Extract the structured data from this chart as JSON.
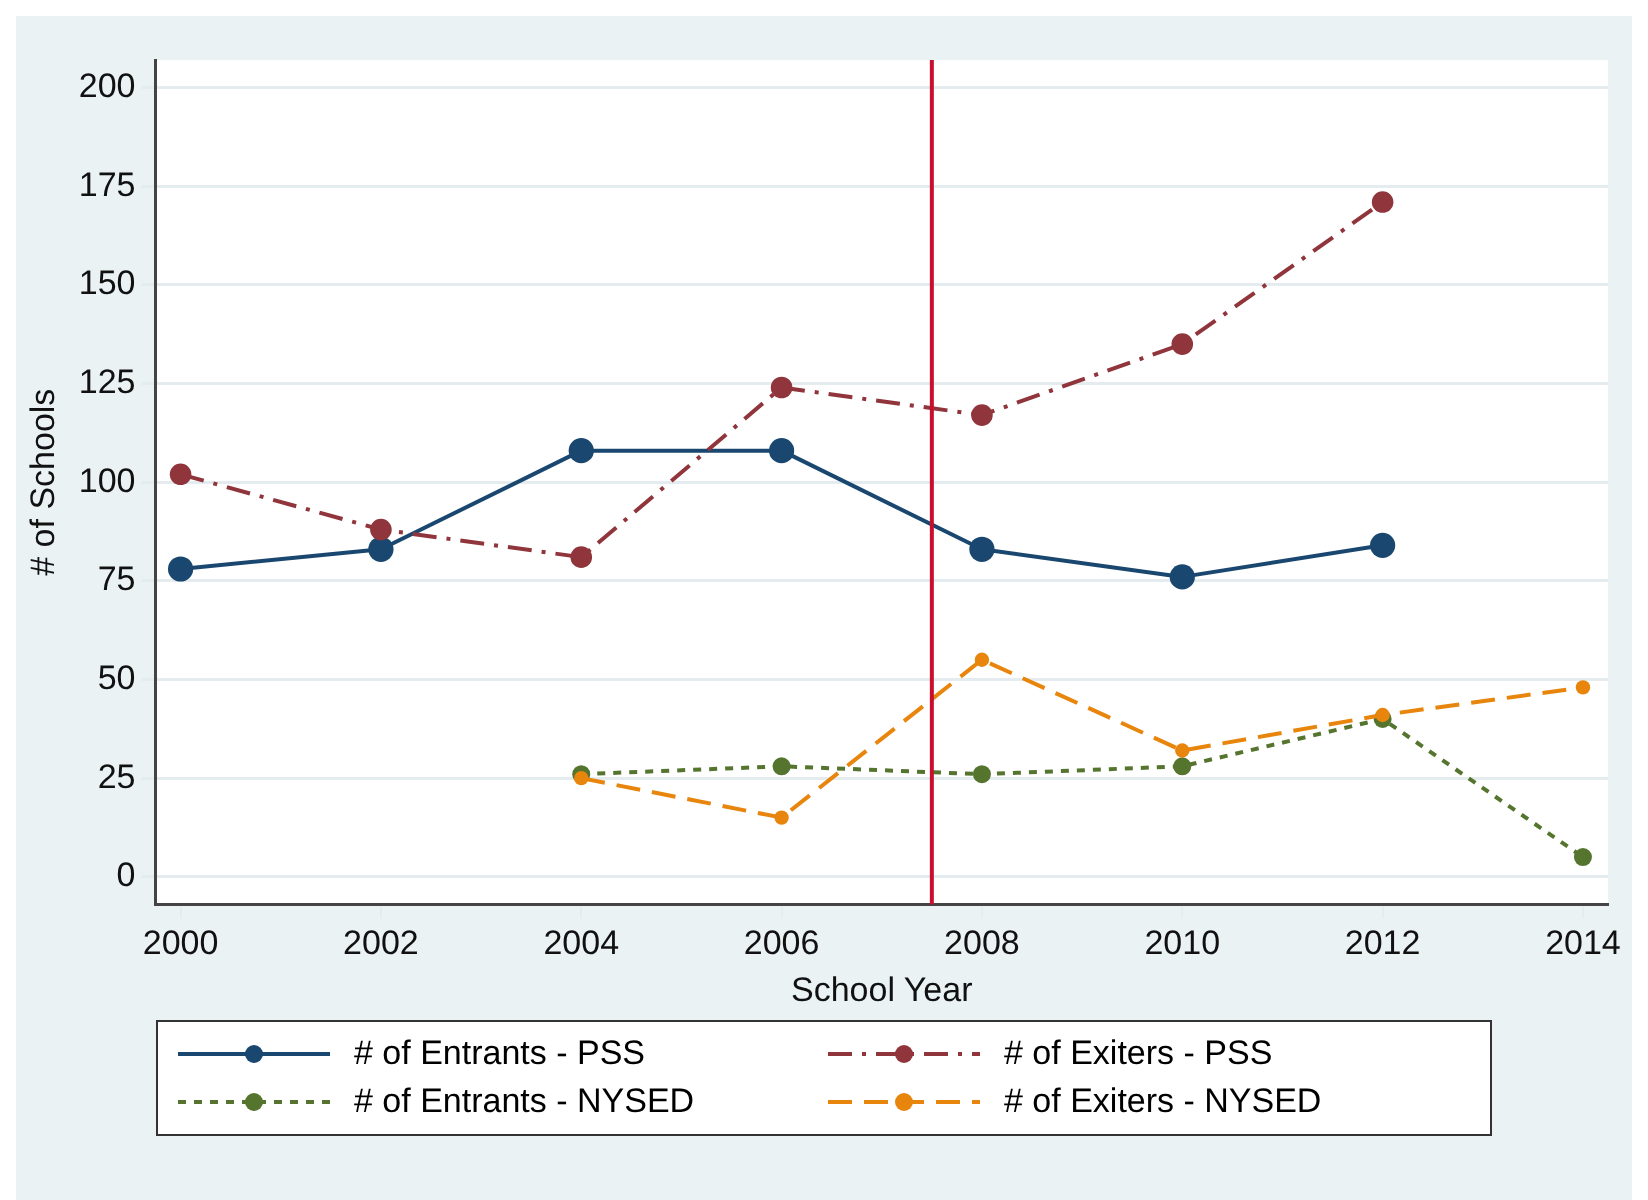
{
  "chart_data": {
    "type": "line",
    "xlabel": "School Year",
    "ylabel": "# of Schools",
    "x": [
      2000,
      2002,
      2004,
      2006,
      2008,
      2010,
      2012,
      2014
    ],
    "xlim": [
      1999.75,
      2014.25
    ],
    "xticks": [
      2000,
      2002,
      2004,
      2006,
      2008,
      2010,
      2012,
      2014
    ],
    "ylim": [
      -7,
      207
    ],
    "yticks": [
      0,
      25,
      50,
      75,
      100,
      125,
      150,
      175,
      200
    ],
    "grid": "y",
    "legend": "bottom",
    "marker": "circle",
    "ref_lines": [
      {
        "axis": "x",
        "value": 2007.5,
        "color": "#c8102e"
      }
    ],
    "series": [
      {
        "name": "# of Entrants - PSS",
        "color": "#1a476f",
        "line_style": "solid",
        "values": [
          78,
          83,
          108,
          108,
          83,
          76,
          84,
          null
        ]
      },
      {
        "name": "# of Exiters - PSS",
        "color": "#90353b",
        "line_style": "dashdot",
        "values": [
          102,
          88,
          81,
          124,
          117,
          135,
          171,
          null
        ]
      },
      {
        "name": "# of Entrants - NYSED",
        "color": "#55752f",
        "line_style": "dotted",
        "values": [
          null,
          null,
          26,
          28,
          26,
          28,
          40,
          5
        ]
      },
      {
        "name": "# of Exiters - NYSED",
        "color": "#e8850c",
        "line_style": "dashed",
        "values": [
          null,
          null,
          25,
          15,
          55,
          32,
          41,
          48
        ]
      }
    ]
  }
}
